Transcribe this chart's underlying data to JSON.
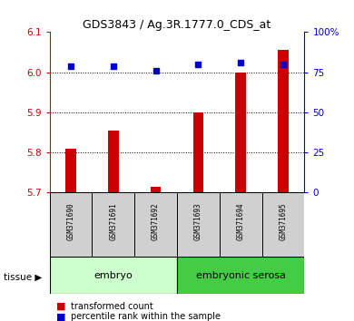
{
  "title": "GDS3843 / Ag.3R.1777.0_CDS_at",
  "samples": [
    "GSM371690",
    "GSM371691",
    "GSM371692",
    "GSM371693",
    "GSM371694",
    "GSM371695"
  ],
  "transformed_counts": [
    5.81,
    5.855,
    5.715,
    5.9,
    6.0,
    6.055
  ],
  "percentile_ranks": [
    79,
    79,
    76,
    80,
    81,
    80
  ],
  "ylim_left": [
    5.7,
    6.1
  ],
  "ylim_right": [
    0,
    100
  ],
  "yticks_left": [
    5.7,
    5.8,
    5.9,
    6.0,
    6.1
  ],
  "yticks_right": [
    0,
    25,
    50,
    75,
    100
  ],
  "ytick_labels_right": [
    "0",
    "25",
    "50",
    "75",
    "100%"
  ],
  "grid_values": [
    5.8,
    5.9,
    6.0
  ],
  "bar_color": "#cc0000",
  "dot_color": "#0000cc",
  "bar_width": 0.25,
  "tissue_groups": [
    {
      "label": "embryo",
      "indices": [
        0,
        1,
        2
      ],
      "color": "#ccffcc"
    },
    {
      "label": "embryonic serosa",
      "indices": [
        3,
        4,
        5
      ],
      "color": "#44cc44"
    }
  ],
  "legend_items": [
    {
      "label": "transformed count",
      "color": "#cc0000"
    },
    {
      "label": "percentile rank within the sample",
      "color": "#0000cc"
    }
  ],
  "tissue_label": "tissue",
  "left_color": "#cc0000",
  "right_color": "#0000cc",
  "sample_box_color": "#d0d0d0",
  "fig_bg": "#ffffff"
}
